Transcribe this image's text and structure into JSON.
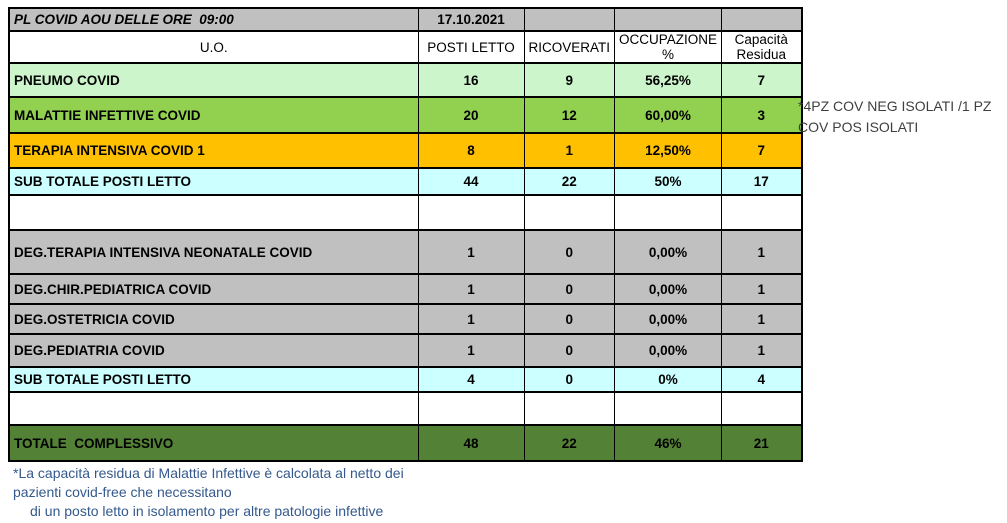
{
  "report": {
    "title": "PL COVID AOU DELLE ORE  09:00",
    "date": "17.10.2021"
  },
  "columns": {
    "uo": "U.O.",
    "posti_letto": "POSTI LETTO",
    "ricoverati": "RICOVERATI",
    "occupazione": "OCCUPAZIONE %",
    "capacita_residua": "Capacità Residua"
  },
  "rows": [
    {
      "label": "PNEUMO COVID",
      "posti_letto": "16",
      "ricoverati": "9",
      "occupazione": "56,25%",
      "capacita_residua": "7"
    },
    {
      "label": "MALATTIE INFETTIVE COVID",
      "posti_letto": "20",
      "ricoverati": "12",
      "occupazione": "60,00%",
      "capacita_residua": "3"
    },
    {
      "label": "TERAPIA INTENSIVA COVID 1",
      "posti_letto": "8",
      "ricoverati": "1",
      "occupazione": "12,50%",
      "capacita_residua": "7"
    },
    {
      "label": "SUB TOTALE POSTI LETTO",
      "posti_letto": "44",
      "ricoverati": "22",
      "occupazione": "50%",
      "capacita_residua": "17"
    },
    {
      "label": "",
      "posti_letto": "",
      "ricoverati": "",
      "occupazione": "",
      "capacita_residua": ""
    },
    {
      "label": "DEG.TERAPIA INTENSIVA NEONATALE COVID",
      "posti_letto": "1",
      "ricoverati": "0",
      "occupazione": "0,00%",
      "capacita_residua": "1"
    },
    {
      "label": "DEG.CHIR.PEDIATRICA COVID",
      "posti_letto": "1",
      "ricoverati": "0",
      "occupazione": "0,00%",
      "capacita_residua": "1"
    },
    {
      "label": "DEG.OSTETRICIA COVID",
      "posti_letto": "1",
      "ricoverati": "0",
      "occupazione": "0,00%",
      "capacita_residua": "1"
    },
    {
      "label": "DEG.PEDIATRIA COVID",
      "posti_letto": "1",
      "ricoverati": "0",
      "occupazione": "0,00%",
      "capacita_residua": "1"
    },
    {
      "label": "SUB TOTALE POSTI LETTO",
      "posti_letto": "4",
      "ricoverati": "0",
      "occupazione": "0%",
      "capacita_residua": "4"
    },
    {
      "label": "",
      "posti_letto": "",
      "ricoverati": "",
      "occupazione": "",
      "capacita_residua": ""
    },
    {
      "label": "TOTALE  COMPLESSIVO",
      "posti_letto": "48",
      "ricoverati": "22",
      "occupazione": "46%",
      "capacita_residua": "21"
    }
  ],
  "side_note": "*4PZ COV NEG ISOLATI /1 PZ COV POS ISOLATI",
  "footnote": {
    "line1": "*La capacità residua di Malattie Infettive è calcolata al netto dei",
    "line2": "pazienti covid-free che necessitano",
    "line3": "di un posto letto in isolamento per altre patologie infettive"
  },
  "colors": {
    "header_gray": "#C0C0C0",
    "row_light_green": "#CCF5CC",
    "row_green": "#92D050",
    "row_orange": "#FFC000",
    "row_cyan": "#CCFFFF",
    "row_gray": "#C0C0C0",
    "row_dark_green": "#538135",
    "footnote_text": "#34598C",
    "side_note_text": "#3F3F3F"
  }
}
